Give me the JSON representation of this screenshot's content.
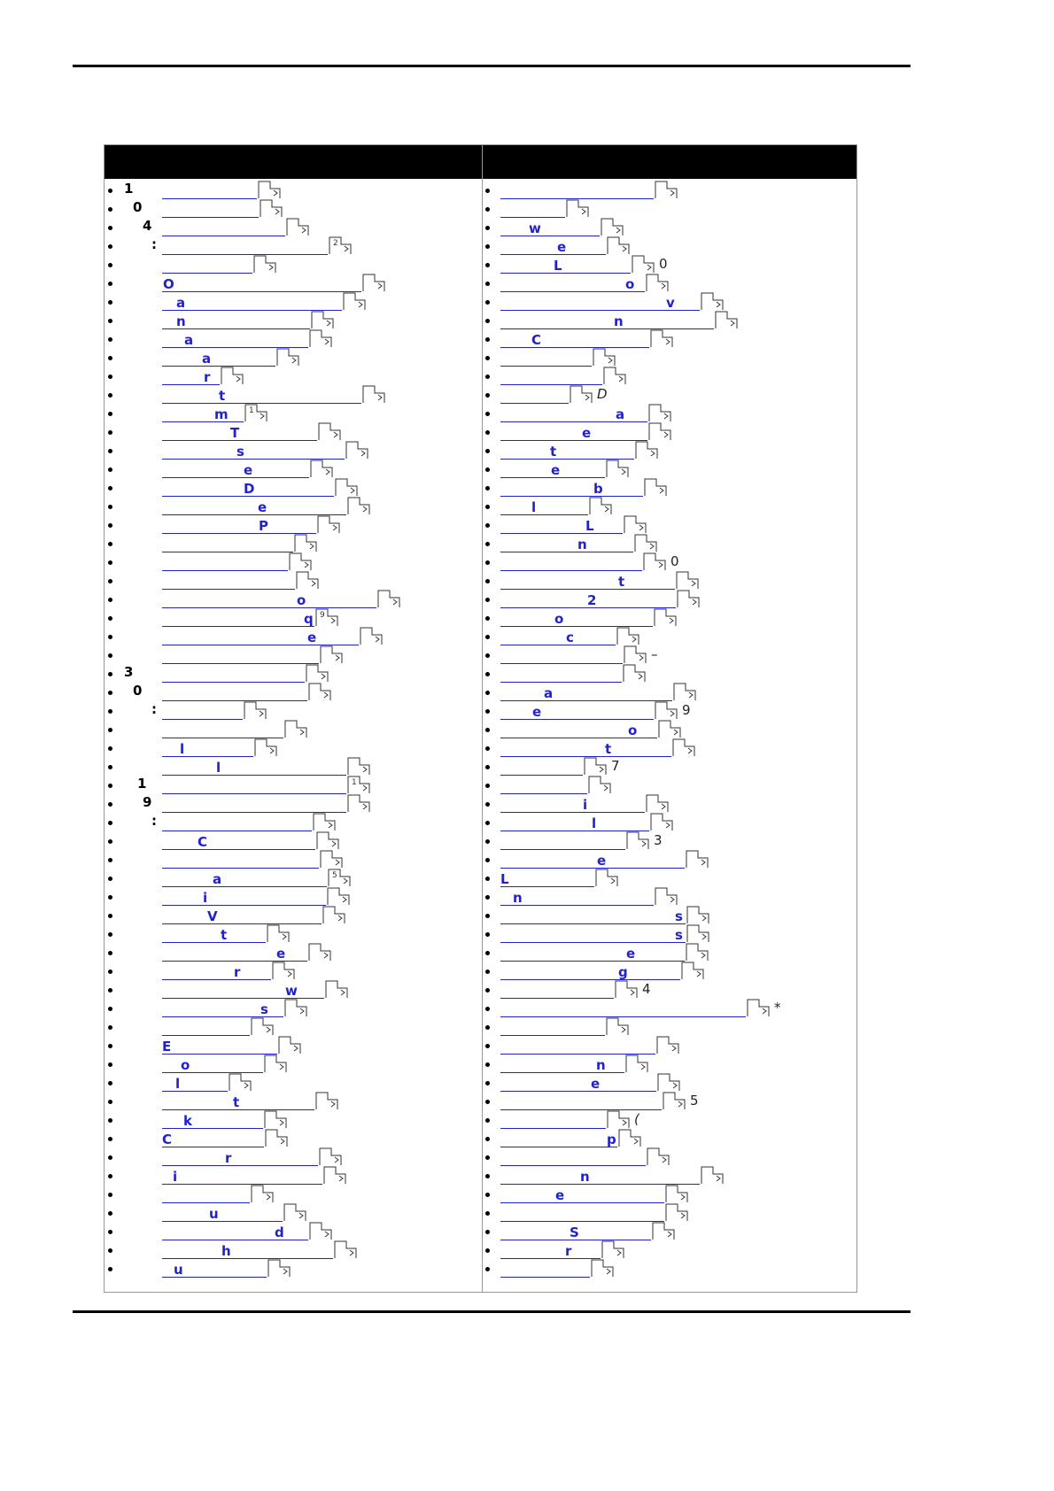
{
  "columns": [
    {
      "items": [
        {
          "prefix": "1"
        },
        {
          "prefix": "0"
        },
        {
          "prefix": "4"
        },
        {
          "prefix": ":",
          "note": "2"
        },
        {},
        {
          "link": "O"
        },
        {
          "link": "a"
        },
        {
          "link": "n"
        },
        {
          "link": "a"
        },
        {
          "link": "a"
        },
        {
          "link": "r"
        },
        {
          "link": "t"
        },
        {
          "link": "m",
          "note": "1"
        },
        {
          "link": "T"
        },
        {
          "link": "s"
        },
        {
          "link": "e"
        },
        {
          "link": "D"
        },
        {
          "link": "e"
        },
        {
          "link": "P"
        },
        {},
        {},
        {},
        {
          "link": "o"
        },
        {
          "link": "q",
          "note": "9"
        },
        {
          "link": "e"
        },
        {},
        {
          "prefix": "3"
        },
        {
          "prefix": "0"
        },
        {
          "prefix": ":"
        },
        {},
        {
          "link": "l"
        },
        {
          "link": "l"
        },
        {
          "prefix": "1",
          "note": "1"
        },
        {
          "prefix": "9"
        },
        {
          "prefix": ":"
        },
        {
          "link": "C"
        },
        {},
        {
          "link": "a",
          "note": "5"
        },
        {
          "link": "i"
        },
        {
          "link": "V"
        },
        {
          "link": "t"
        },
        {
          "link": "e"
        },
        {
          "link": "r"
        },
        {
          "link": "w"
        },
        {
          "link": "s"
        },
        {},
        {
          "link": "E"
        },
        {
          "link": "o"
        },
        {
          "link": "l"
        },
        {
          "link": "t"
        },
        {
          "link": "k"
        },
        {
          "link": "C"
        },
        {
          "link": "r"
        },
        {
          "link": "i"
        },
        {},
        {
          "link": "u"
        },
        {
          "link": "d"
        },
        {
          "link": "h"
        },
        {
          "link": "u"
        }
      ]
    },
    {
      "items": [
        {},
        {},
        {
          "link": "w"
        },
        {
          "link": "e"
        },
        {
          "link": "L",
          "suffix": "0"
        },
        {
          "link": "o"
        },
        {
          "link": "v"
        },
        {
          "link": "n"
        },
        {
          "link": "C"
        },
        {},
        {},
        {
          "suffix": "D"
        },
        {
          "link": "a"
        },
        {
          "link": "e"
        },
        {
          "link": "t"
        },
        {
          "link": "e"
        },
        {
          "link": "b"
        },
        {
          "link": "l"
        },
        {
          "link": "L"
        },
        {
          "link": "n"
        },
        {
          "suffix": "0"
        },
        {
          "link": "t"
        },
        {
          "link": "2"
        },
        {
          "link": "o"
        },
        {
          "link": "c"
        },
        {
          "suffix": "–"
        },
        {},
        {
          "link": "a"
        },
        {
          "link": "e",
          "suffix": "9"
        },
        {
          "link": "o"
        },
        {
          "link": "t"
        },
        {
          "suffix": "7"
        },
        {},
        {
          "link": "i"
        },
        {
          "link": "l"
        },
        {
          "suffix": "3"
        },
        {
          "link": "e"
        },
        {
          "link": "L"
        },
        {
          "link": "n"
        },
        {
          "link": "s"
        },
        {
          "link": "s"
        },
        {
          "link": "e"
        },
        {
          "link": "g"
        },
        {
          "suffix": "4"
        },
        {
          "suffix": "*"
        },
        {},
        {},
        {
          "link": "n"
        },
        {
          "link": "e"
        },
        {
          "suffix": "5"
        },
        {
          "suffix": "("
        },
        {
          "link": "p"
        },
        {},
        {
          "link": "n"
        },
        {
          "link": "e"
        },
        {},
        {
          "link": "S"
        },
        {
          "link": "r"
        },
        {}
      ]
    }
  ]
}
